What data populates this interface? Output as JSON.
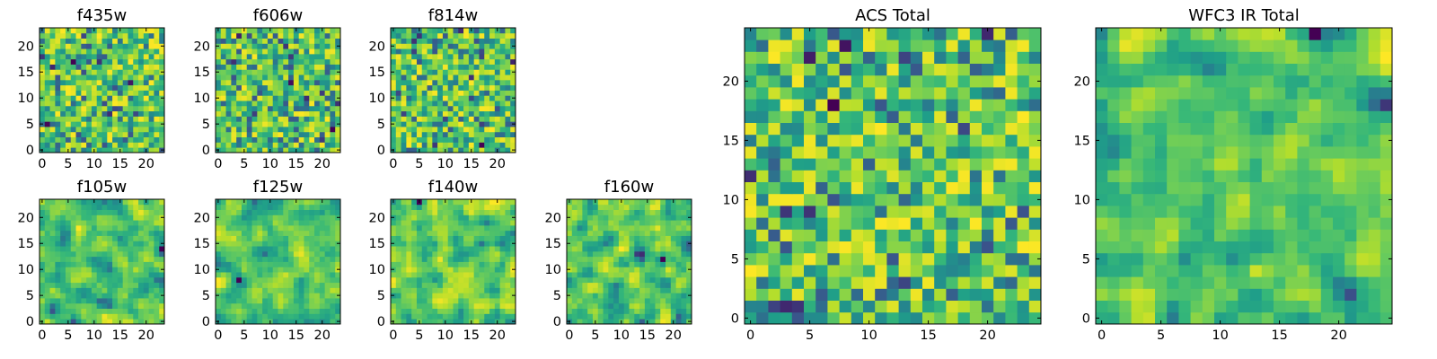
{
  "figure": {
    "title": ""
  },
  "colors": [
    "#440154",
    "#3b528b",
    "#21908d",
    "#2f9f86",
    "#5dc863",
    "#9bd93c",
    "#fde725"
  ],
  "chart_data": [
    {
      "id": "f435w",
      "type": "heatmap",
      "title": "f435w",
      "grid_size": 24,
      "xticks": [
        "0",
        "5",
        "10",
        "15",
        "20"
      ],
      "yticks": [
        "0",
        "5",
        "10",
        "15",
        "20"
      ],
      "xlim": [
        0,
        24
      ],
      "ylim": [
        0,
        24
      ],
      "seed": 11,
      "smoothing": 0,
      "colormap": "viridis"
    },
    {
      "id": "f606w",
      "type": "heatmap",
      "title": "f606w",
      "grid_size": 24,
      "xticks": [
        "0",
        "5",
        "10",
        "15",
        "20"
      ],
      "yticks": [
        "0",
        "5",
        "10",
        "15",
        "20"
      ],
      "xlim": [
        0,
        24
      ],
      "ylim": [
        0,
        24
      ],
      "seed": 23,
      "smoothing": 0,
      "colormap": "viridis"
    },
    {
      "id": "f814w",
      "type": "heatmap",
      "title": "f814w",
      "grid_size": 24,
      "xticks": [
        "0",
        "5",
        "10",
        "15",
        "20"
      ],
      "yticks": [
        "0",
        "5",
        "10",
        "15",
        "20"
      ],
      "xlim": [
        0,
        24
      ],
      "ylim": [
        0,
        24
      ],
      "seed": 37,
      "smoothing": 0,
      "colormap": "viridis"
    },
    {
      "id": "f105w",
      "type": "heatmap",
      "title": "f105w",
      "grid_size": 24,
      "xticks": [
        "0",
        "5",
        "10",
        "15",
        "20"
      ],
      "yticks": [
        "0",
        "5",
        "10",
        "15",
        "20"
      ],
      "xlim": [
        0,
        24
      ],
      "ylim": [
        0,
        24
      ],
      "seed": 41,
      "smoothing": 1,
      "colormap": "viridis"
    },
    {
      "id": "f125w",
      "type": "heatmap",
      "title": "f125w",
      "grid_size": 24,
      "xticks": [
        "0",
        "5",
        "10",
        "15",
        "20"
      ],
      "yticks": [
        "0",
        "5",
        "10",
        "15",
        "20"
      ],
      "xlim": [
        0,
        24
      ],
      "ylim": [
        0,
        24
      ],
      "seed": 53,
      "smoothing": 1,
      "colormap": "viridis"
    },
    {
      "id": "f140w",
      "type": "heatmap",
      "title": "f140w",
      "grid_size": 24,
      "xticks": [
        "0",
        "5",
        "10",
        "15",
        "20"
      ],
      "yticks": [
        "0",
        "5",
        "10",
        "15",
        "20"
      ],
      "xlim": [
        0,
        24
      ],
      "ylim": [
        0,
        24
      ],
      "seed": 67,
      "smoothing": 1,
      "colormap": "viridis"
    },
    {
      "id": "f160w",
      "type": "heatmap",
      "title": "f160w",
      "grid_size": 24,
      "xticks": [
        "0",
        "5",
        "10",
        "15",
        "20"
      ],
      "yticks": [
        "0",
        "5",
        "10",
        "15",
        "20"
      ],
      "xlim": [
        0,
        24
      ],
      "ylim": [
        0,
        24
      ],
      "seed": 79,
      "smoothing": 1,
      "colormap": "viridis"
    },
    {
      "id": "acs-total",
      "type": "heatmap",
      "title": "ACS Total",
      "grid_size": 25,
      "xticks": [
        "0",
        "5",
        "10",
        "15",
        "20"
      ],
      "yticks": [
        "0",
        "5",
        "10",
        "15",
        "20"
      ],
      "xlim": [
        0,
        25
      ],
      "ylim": [
        0,
        25
      ],
      "seed": 97,
      "smoothing": 0,
      "colormap": "viridis"
    },
    {
      "id": "wfc3-ir-total",
      "type": "heatmap",
      "title": "WFC3 IR Total",
      "grid_size": 25,
      "xticks": [
        "0",
        "5",
        "10",
        "15",
        "20"
      ],
      "yticks": [
        "0",
        "5",
        "10",
        "15",
        "20"
      ],
      "xlim": [
        0,
        25
      ],
      "ylim": [
        0,
        25
      ],
      "seed": 113,
      "smoothing": 1,
      "colormap": "viridis"
    }
  ]
}
